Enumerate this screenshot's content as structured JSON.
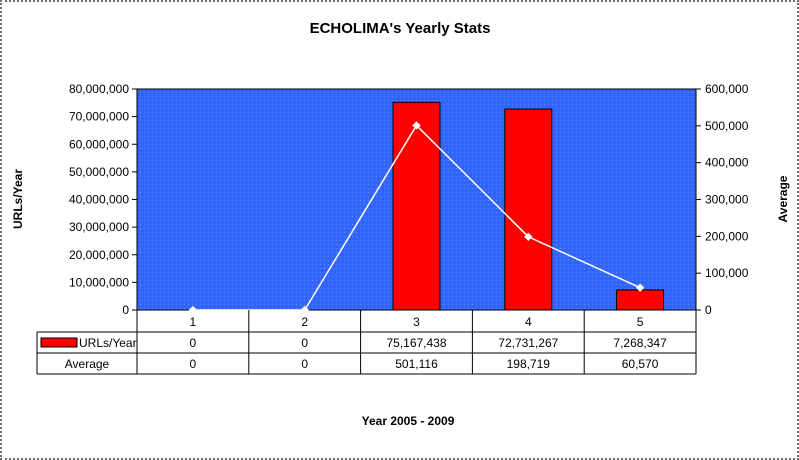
{
  "chart_data": {
    "type": "bar",
    "title": "ECHOLIMA's Yearly Stats",
    "xlabel": "Year 2005 - 2009",
    "ylabel_left": "URLs/Year",
    "ylabel_right": "Average",
    "categories": [
      "1",
      "2",
      "3",
      "4",
      "5"
    ],
    "ylim_left": [
      0,
      80000000
    ],
    "ylim_right": [
      0,
      600000
    ],
    "y_ticks_left": [
      "0",
      "10,000,000",
      "20,000,000",
      "30,000,000",
      "40,000,000",
      "50,000,000",
      "60,000,000",
      "70,000,000",
      "80,000,000"
    ],
    "y_ticks_right": [
      "0",
      "100,000",
      "200,000",
      "300,000",
      "400,000",
      "500,000",
      "600,000"
    ],
    "series": [
      {
        "name": "URLs/Year",
        "type": "bar",
        "axis": "left",
        "color": "#ff0000",
        "values": [
          0,
          0,
          75167438,
          72731267,
          7268347
        ],
        "labels": [
          "0",
          "0",
          "75,167,438",
          "72,731,267",
          "7,268,347"
        ]
      },
      {
        "name": "Average",
        "type": "line",
        "axis": "right",
        "color": "#ffffff",
        "values": [
          0,
          0,
          501116,
          198719,
          60570
        ],
        "labels": [
          "0",
          "0",
          "501,116",
          "198,719",
          "60,570"
        ]
      }
    ],
    "plot_background": "#3366ff",
    "grid": false,
    "legend": "data-table"
  }
}
